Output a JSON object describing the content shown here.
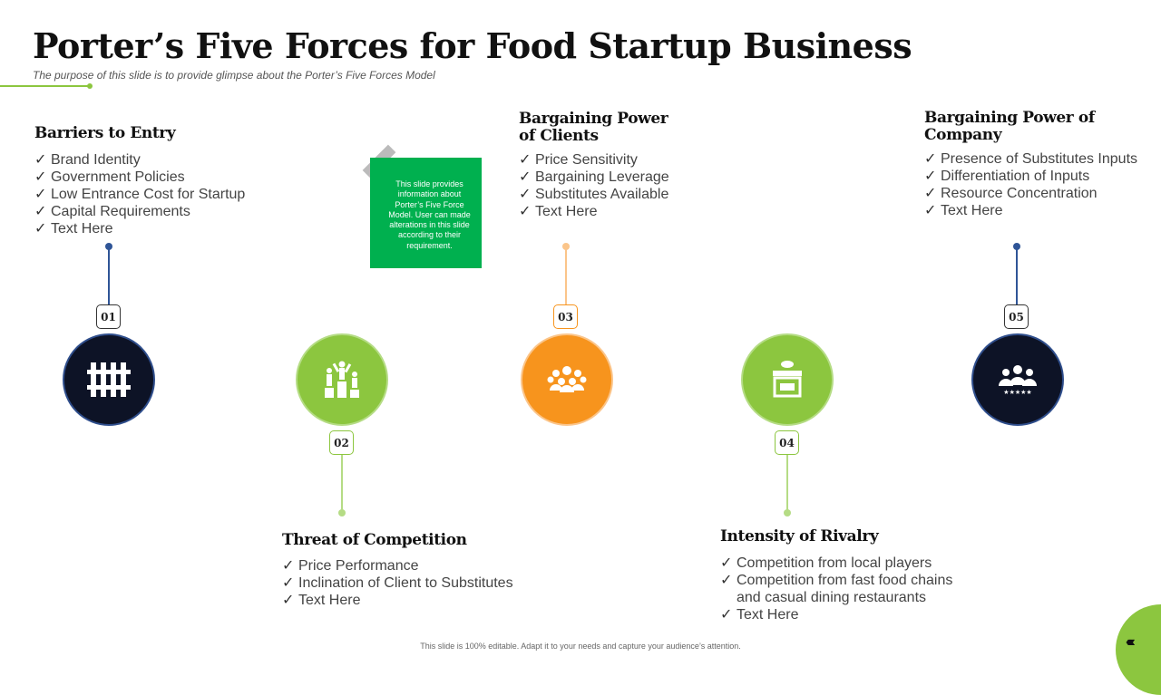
{
  "title": "Porter’s Five Forces for Food Startup Business",
  "subtitle": "The purpose of this slide is to provide glimpse about the Porter’s Five Forces Model",
  "note": "This slide provides information about Porter’s Five Force Model.  User can made alterations in this slide according to their requirement.",
  "footer": "This slide is 100% editable. Adapt it to your needs and capture your audience’s attention.",
  "colors": {
    "navy": "#0d1326",
    "green": "#8cc63f",
    "orange": "#f7941d",
    "note_green": "#00b04f"
  },
  "forces": [
    {
      "num": "01",
      "heading": "Barriers to Entry",
      "icon": "fence-icon",
      "items": [
        "Brand Identity",
        "Government  Policies",
        "Low Entrance Cost for Startup",
        "Capital Requirements",
        "Text Here"
      ]
    },
    {
      "num": "02",
      "heading": "Threat of Competition",
      "icon": "podium-icon",
      "items": [
        "Price Performance",
        "Inclination  of Client to Substitutes",
        "Text Here"
      ]
    },
    {
      "num": "03",
      "heading": "Bargaining Power of Clients",
      "icon": "group-icon",
      "items": [
        "Price Sensitivity",
        "Bargaining Leverage",
        "Substitutes Available",
        "Text Here"
      ]
    },
    {
      "num": "04",
      "heading": "Intensity of Rivalry",
      "icon": "food-stall-icon",
      "items": [
        "Competition from local players",
        "Competition from fast food chains and casual dining restaurants",
        "Text Here"
      ]
    },
    {
      "num": "05",
      "heading": "Bargaining Power of Company",
      "icon": "rated-team-icon",
      "items": [
        "Presence of Substitutes Inputs",
        "Differentiation of Inputs",
        "Resource Concentration",
        "Text Here"
      ]
    }
  ]
}
